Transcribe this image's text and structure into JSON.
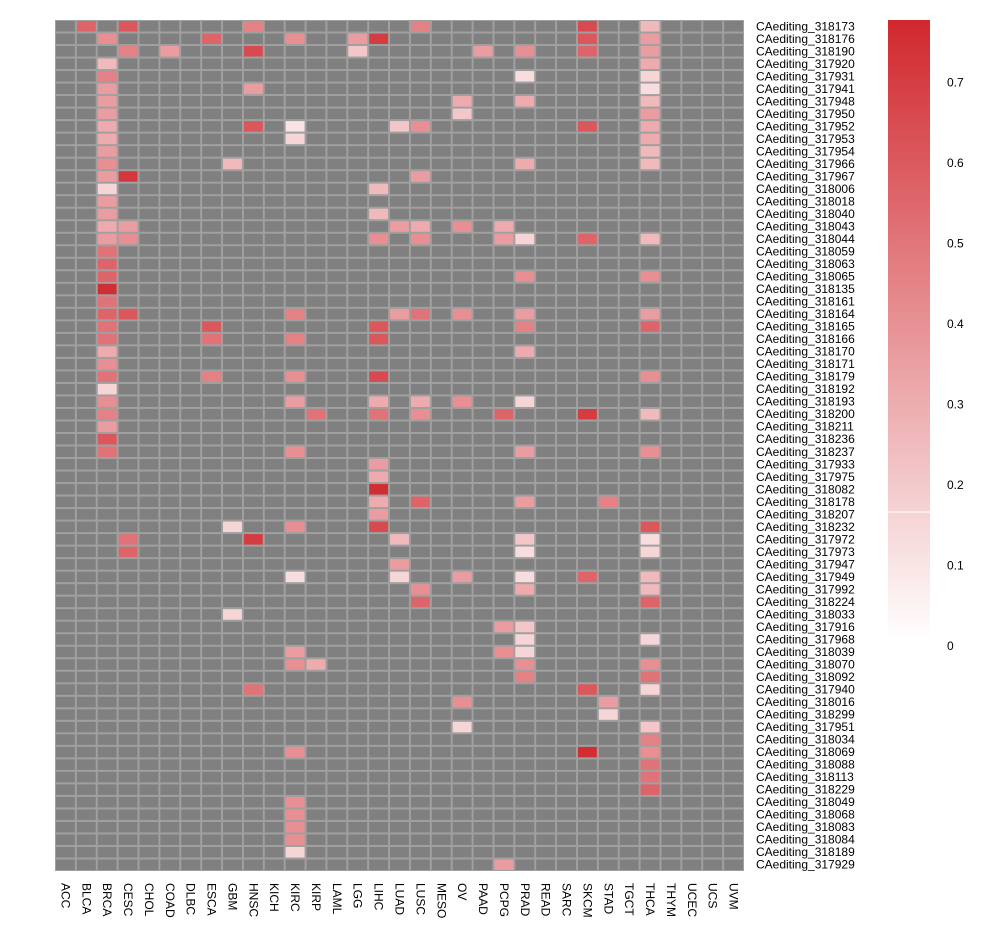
{
  "chart_data": {
    "type": "heatmap",
    "columns": [
      "ACC",
      "BLCA",
      "BRCA",
      "CESC",
      "CHOL",
      "COAD",
      "DLBC",
      "ESCA",
      "GBM",
      "HNSC",
      "KICH",
      "KIRC",
      "KIRP",
      "LAML",
      "LGG",
      "LIHC",
      "LUAD",
      "LUSC",
      "MESO",
      "OV",
      "PAAD",
      "PCPG",
      "PRAD",
      "READ",
      "SARC",
      "SKCM",
      "STAD",
      "TGCT",
      "THCA",
      "THYM",
      "UCEC",
      "UCS",
      "UVM"
    ],
    "rows": [
      "CAediting_318173",
      "CAediting_318176",
      "CAediting_318190",
      "CAediting_317920",
      "CAediting_317931",
      "CAediting_317941",
      "CAediting_317948",
      "CAediting_317950",
      "CAediting_317952",
      "CAediting_317953",
      "CAediting_317954",
      "CAediting_317966",
      "CAediting_317967",
      "CAediting_318006",
      "CAediting_318018",
      "CAediting_318040",
      "CAediting_318043",
      "CAediting_318044",
      "CAediting_318059",
      "CAediting_318063",
      "CAediting_318065",
      "CAediting_318135",
      "CAediting_318161",
      "CAediting_318164",
      "CAediting_318165",
      "CAediting_318166",
      "CAediting_318170",
      "CAediting_318171",
      "CAediting_318179",
      "CAediting_318192",
      "CAediting_318193",
      "CAediting_318200",
      "CAediting_318211",
      "CAediting_318236",
      "CAediting_318237",
      "CAediting_317933",
      "CAediting_317975",
      "CAediting_318082",
      "CAediting_318178",
      "CAediting_318207",
      "CAediting_318232",
      "CAediting_317972",
      "CAediting_317973",
      "CAediting_317947",
      "CAediting_317949",
      "CAediting_317992",
      "CAediting_318224",
      "CAediting_318033",
      "CAediting_317916",
      "CAediting_317968",
      "CAediting_318039",
      "CAediting_318070",
      "CAediting_318092",
      "CAediting_317940",
      "CAediting_318016",
      "CAediting_318299",
      "CAediting_317951",
      "CAediting_318034",
      "CAediting_318069",
      "CAediting_318088",
      "CAediting_318113",
      "CAediting_318229",
      "CAediting_318049",
      "CAediting_318068",
      "CAediting_318083",
      "CAediting_318084",
      "CAediting_318189",
      "CAediting_317929"
    ],
    "na_color": "#808080",
    "color_low": "#ffffff",
    "color_high": "#d0282e",
    "value_range": [
      0,
      0.77
    ],
    "legend_ticks": [
      "0",
      "0.1",
      "0.2",
      "0.3",
      "0.4",
      "0.5",
      "0.6",
      "0.7"
    ],
    "cells": [
      [
        0,
        1,
        0.55
      ],
      [
        0,
        3,
        0.6
      ],
      [
        0,
        9,
        0.45
      ],
      [
        0,
        17,
        0.45
      ],
      [
        0,
        25,
        0.65
      ],
      [
        0,
        28,
        0.25
      ],
      [
        1,
        2,
        0.4
      ],
      [
        1,
        7,
        0.55
      ],
      [
        1,
        11,
        0.4
      ],
      [
        1,
        14,
        0.35
      ],
      [
        1,
        15,
        0.7
      ],
      [
        1,
        25,
        0.6
      ],
      [
        1,
        28,
        0.35
      ],
      [
        2,
        3,
        0.45
      ],
      [
        2,
        5,
        0.35
      ],
      [
        2,
        9,
        0.65
      ],
      [
        2,
        14,
        0.2
      ],
      [
        2,
        20,
        0.35
      ],
      [
        2,
        22,
        0.4
      ],
      [
        2,
        25,
        0.55
      ],
      [
        2,
        28,
        0.35
      ],
      [
        3,
        2,
        0.25
      ],
      [
        3,
        28,
        0.3
      ],
      [
        4,
        2,
        0.45
      ],
      [
        4,
        22,
        0.12
      ],
      [
        4,
        28,
        0.15
      ],
      [
        5,
        2,
        0.35
      ],
      [
        5,
        9,
        0.35
      ],
      [
        5,
        28,
        0.12
      ],
      [
        6,
        2,
        0.35
      ],
      [
        6,
        19,
        0.3
      ],
      [
        6,
        22,
        0.3
      ],
      [
        6,
        28,
        0.25
      ],
      [
        7,
        2,
        0.35
      ],
      [
        7,
        19,
        0.2
      ],
      [
        7,
        28,
        0.35
      ],
      [
        8,
        2,
        0.3
      ],
      [
        8,
        9,
        0.6
      ],
      [
        8,
        11,
        0.1
      ],
      [
        8,
        16,
        0.2
      ],
      [
        8,
        17,
        0.4
      ],
      [
        8,
        25,
        0.6
      ],
      [
        8,
        28,
        0.3
      ],
      [
        9,
        2,
        0.3
      ],
      [
        9,
        11,
        0.15
      ],
      [
        9,
        28,
        0.3
      ],
      [
        10,
        2,
        0.35
      ],
      [
        10,
        28,
        0.25
      ],
      [
        11,
        2,
        0.4
      ],
      [
        11,
        8,
        0.25
      ],
      [
        11,
        22,
        0.3
      ],
      [
        11,
        28,
        0.25
      ],
      [
        12,
        2,
        0.35
      ],
      [
        12,
        3,
        0.72
      ],
      [
        12,
        17,
        0.35
      ],
      [
        13,
        2,
        0.15
      ],
      [
        13,
        15,
        0.25
      ],
      [
        14,
        2,
        0.35
      ],
      [
        15,
        2,
        0.35
      ],
      [
        15,
        15,
        0.25
      ],
      [
        16,
        2,
        0.3
      ],
      [
        16,
        3,
        0.35
      ],
      [
        16,
        16,
        0.35
      ],
      [
        16,
        17,
        0.3
      ],
      [
        16,
        19,
        0.4
      ],
      [
        16,
        21,
        0.3
      ],
      [
        17,
        2,
        0.35
      ],
      [
        17,
        3,
        0.4
      ],
      [
        17,
        15,
        0.4
      ],
      [
        17,
        17,
        0.4
      ],
      [
        17,
        21,
        0.35
      ],
      [
        17,
        22,
        0.15
      ],
      [
        17,
        25,
        0.55
      ],
      [
        17,
        28,
        0.25
      ],
      [
        18,
        2,
        0.5
      ],
      [
        19,
        2,
        0.55
      ],
      [
        20,
        2,
        0.55
      ],
      [
        20,
        22,
        0.4
      ],
      [
        20,
        28,
        0.4
      ],
      [
        21,
        2,
        0.75
      ],
      [
        22,
        2,
        0.5
      ],
      [
        23,
        2,
        0.55
      ],
      [
        23,
        3,
        0.6
      ],
      [
        23,
        11,
        0.45
      ],
      [
        23,
        16,
        0.35
      ],
      [
        23,
        17,
        0.5
      ],
      [
        23,
        19,
        0.4
      ],
      [
        23,
        22,
        0.35
      ],
      [
        23,
        28,
        0.35
      ],
      [
        24,
        2,
        0.5
      ],
      [
        24,
        7,
        0.6
      ],
      [
        24,
        15,
        0.6
      ],
      [
        24,
        22,
        0.45
      ],
      [
        24,
        28,
        0.55
      ],
      [
        25,
        2,
        0.5
      ],
      [
        25,
        7,
        0.5
      ],
      [
        25,
        11,
        0.45
      ],
      [
        25,
        15,
        0.6
      ],
      [
        26,
        2,
        0.3
      ],
      [
        26,
        22,
        0.3
      ],
      [
        27,
        2,
        0.4
      ],
      [
        28,
        2,
        0.5
      ],
      [
        28,
        7,
        0.45
      ],
      [
        28,
        11,
        0.4
      ],
      [
        28,
        15,
        0.65
      ],
      [
        28,
        28,
        0.4
      ],
      [
        29,
        2,
        0.15
      ],
      [
        30,
        2,
        0.4
      ],
      [
        30,
        11,
        0.35
      ],
      [
        30,
        15,
        0.3
      ],
      [
        30,
        17,
        0.3
      ],
      [
        30,
        19,
        0.4
      ],
      [
        30,
        22,
        0.15
      ],
      [
        31,
        2,
        0.45
      ],
      [
        31,
        12,
        0.5
      ],
      [
        31,
        15,
        0.5
      ],
      [
        31,
        17,
        0.4
      ],
      [
        31,
        21,
        0.55
      ],
      [
        31,
        25,
        0.7
      ],
      [
        31,
        28,
        0.25
      ],
      [
        32,
        2,
        0.35
      ],
      [
        33,
        2,
        0.6
      ],
      [
        34,
        2,
        0.5
      ],
      [
        34,
        11,
        0.4
      ],
      [
        34,
        22,
        0.35
      ],
      [
        34,
        28,
        0.4
      ],
      [
        35,
        15,
        0.35
      ],
      [
        36,
        15,
        0.3
      ],
      [
        37,
        15,
        0.75
      ],
      [
        38,
        15,
        0.3
      ],
      [
        38,
        17,
        0.55
      ],
      [
        38,
        22,
        0.35
      ],
      [
        38,
        26,
        0.45
      ],
      [
        39,
        15,
        0.35
      ],
      [
        40,
        8,
        0.15
      ],
      [
        40,
        11,
        0.4
      ],
      [
        40,
        15,
        0.65
      ],
      [
        40,
        28,
        0.6
      ],
      [
        41,
        3,
        0.5
      ],
      [
        41,
        9,
        0.7
      ],
      [
        41,
        16,
        0.25
      ],
      [
        41,
        22,
        0.2
      ],
      [
        41,
        28,
        0.12
      ],
      [
        42,
        3,
        0.55
      ],
      [
        42,
        22,
        0.12
      ],
      [
        42,
        28,
        0.15
      ],
      [
        43,
        16,
        0.35
      ],
      [
        44,
        11,
        0.12
      ],
      [
        44,
        16,
        0.15
      ],
      [
        44,
        19,
        0.35
      ],
      [
        44,
        22,
        0.12
      ],
      [
        44,
        25,
        0.55
      ],
      [
        44,
        28,
        0.25
      ],
      [
        45,
        17,
        0.4
      ],
      [
        45,
        22,
        0.3
      ],
      [
        45,
        28,
        0.25
      ],
      [
        46,
        17,
        0.55
      ],
      [
        46,
        28,
        0.55
      ],
      [
        47,
        8,
        0.15
      ],
      [
        48,
        21,
        0.35
      ],
      [
        48,
        22,
        0.2
      ],
      [
        49,
        22,
        0.15
      ],
      [
        49,
        28,
        0.15
      ],
      [
        50,
        11,
        0.35
      ],
      [
        50,
        21,
        0.4
      ],
      [
        50,
        22,
        0.15
      ],
      [
        51,
        11,
        0.4
      ],
      [
        51,
        12,
        0.3
      ],
      [
        51,
        22,
        0.4
      ],
      [
        51,
        28,
        0.4
      ],
      [
        52,
        22,
        0.45
      ],
      [
        52,
        28,
        0.5
      ],
      [
        53,
        9,
        0.5
      ],
      [
        53,
        25,
        0.6
      ],
      [
        53,
        28,
        0.15
      ],
      [
        54,
        19,
        0.4
      ],
      [
        54,
        26,
        0.35
      ],
      [
        55,
        26,
        0.15
      ],
      [
        56,
        19,
        0.15
      ],
      [
        56,
        28,
        0.2
      ],
      [
        57,
        28,
        0.45
      ],
      [
        58,
        11,
        0.4
      ],
      [
        58,
        25,
        0.75
      ],
      [
        58,
        28,
        0.4
      ],
      [
        59,
        28,
        0.5
      ],
      [
        60,
        28,
        0.5
      ],
      [
        61,
        28,
        0.55
      ],
      [
        62,
        11,
        0.4
      ],
      [
        63,
        11,
        0.4
      ],
      [
        64,
        11,
        0.4
      ],
      [
        65,
        11,
        0.4
      ],
      [
        66,
        11,
        0.15
      ],
      [
        67,
        21,
        0.35
      ]
    ]
  }
}
